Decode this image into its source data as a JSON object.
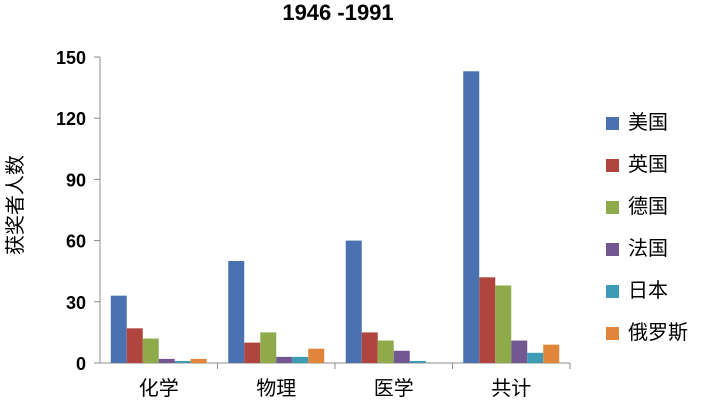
{
  "chart_data": {
    "type": "bar",
    "title": "1946 -1991",
    "ylabel": "获奖者人数",
    "xlabel": "",
    "ylim": [
      0,
      150
    ],
    "yticks": [
      0,
      30,
      60,
      90,
      120,
      150
    ],
    "categories": [
      "化学",
      "物理",
      "医学",
      "共计"
    ],
    "legend_position": "right",
    "grid": false,
    "series": [
      {
        "name": "美国",
        "color": "#4a72b0",
        "values": [
          33,
          50,
          60,
          143
        ]
      },
      {
        "name": "英国",
        "color": "#b04540",
        "values": [
          17,
          10,
          15,
          42
        ]
      },
      {
        "name": "德国",
        "color": "#8faa4a",
        "values": [
          12,
          15,
          11,
          38
        ]
      },
      {
        "name": "法国",
        "color": "#735790",
        "values": [
          2,
          3,
          6,
          11
        ]
      },
      {
        "name": "日本",
        "color": "#3e9bb5",
        "values": [
          1,
          3,
          1,
          5
        ]
      },
      {
        "name": "俄罗斯",
        "color": "#e1853a",
        "values": [
          2,
          7,
          0,
          9
        ]
      }
    ]
  }
}
